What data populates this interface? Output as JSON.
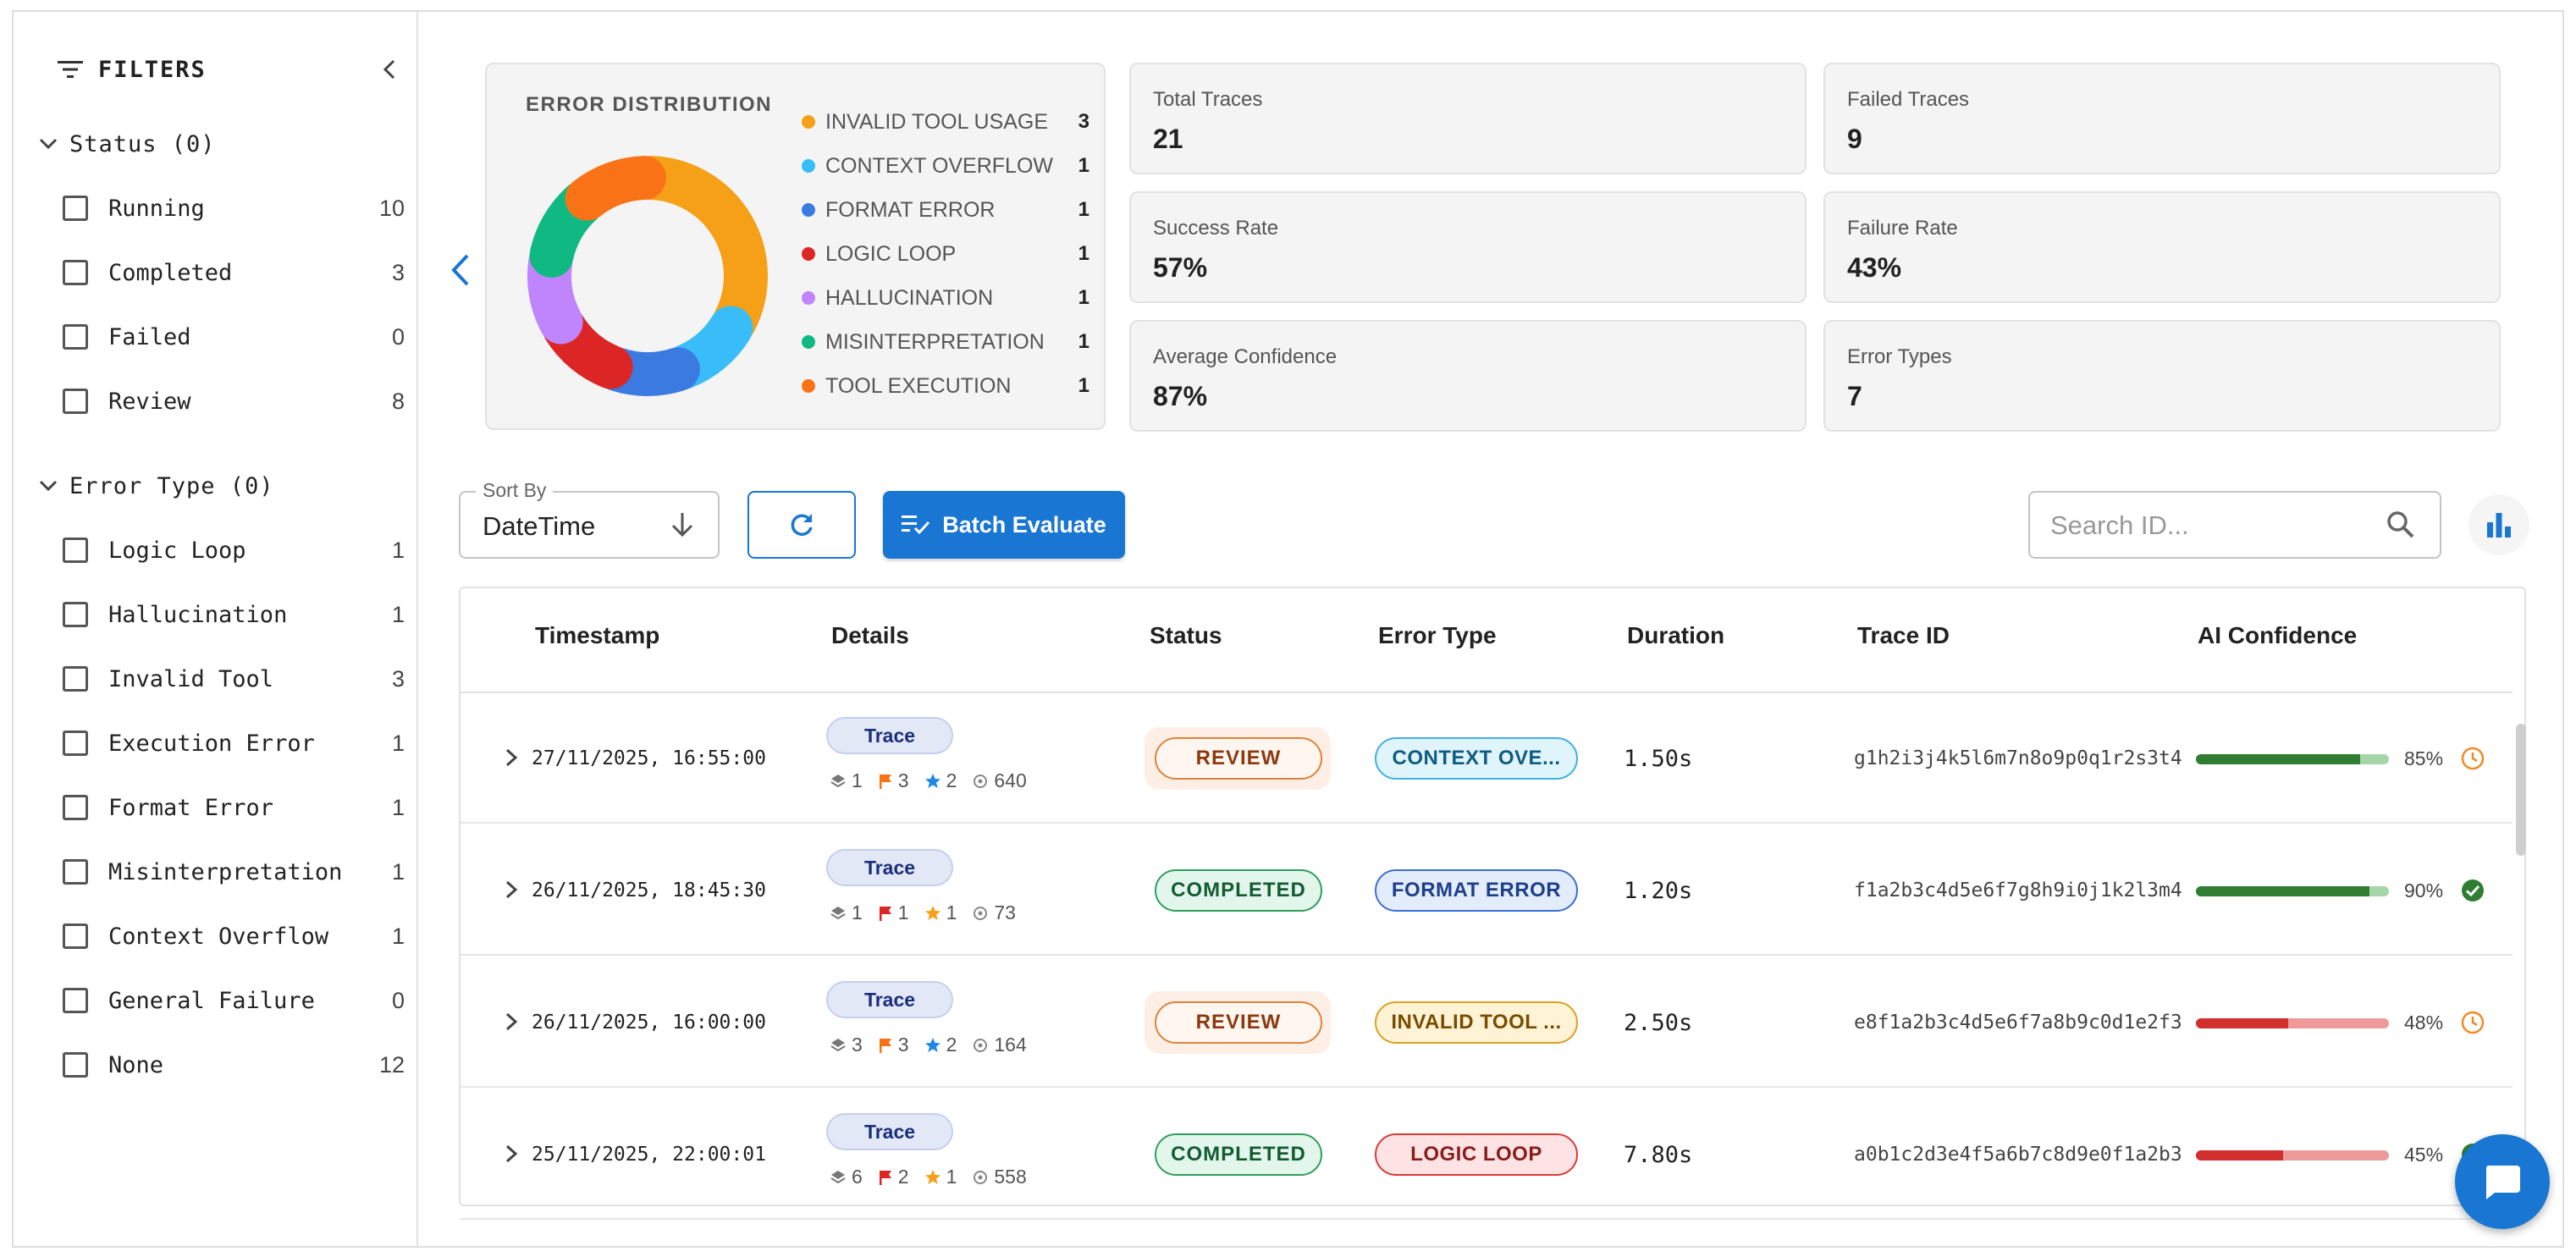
{
  "sidebar": {
    "title": "FILTERS",
    "status_section": {
      "label": "Status (0)",
      "items": [
        {
          "label": "Running",
          "count": "10"
        },
        {
          "label": "Completed",
          "count": "3"
        },
        {
          "label": "Failed",
          "count": "0"
        },
        {
          "label": "Review",
          "count": "8"
        }
      ]
    },
    "error_section": {
      "label": "Error Type (0)",
      "items": [
        {
          "label": "Logic Loop",
          "count": "1"
        },
        {
          "label": "Hallucination",
          "count": "1"
        },
        {
          "label": "Invalid Tool",
          "count": "3"
        },
        {
          "label": "Execution Error",
          "count": "1"
        },
        {
          "label": "Format Error",
          "count": "1"
        },
        {
          "label": "Misinterpretation",
          "count": "1"
        },
        {
          "label": "Context Overflow",
          "count": "1"
        },
        {
          "label": "General Failure",
          "count": "0"
        },
        {
          "label": "None",
          "count": "12"
        }
      ]
    }
  },
  "distribution": {
    "title": "ERROR DISTRIBUTION",
    "legend": [
      {
        "label": "INVALID TOOL USAGE",
        "count": "3",
        "color": "#f5a016"
      },
      {
        "label": "CONTEXT OVERFLOW",
        "count": "1",
        "color": "#38bdf8"
      },
      {
        "label": "FORMAT ERROR",
        "count": "1",
        "color": "#3b7ae0"
      },
      {
        "label": "LOGIC LOOP",
        "count": "1",
        "color": "#dc2626"
      },
      {
        "label": "HALLUCINATION",
        "count": "1",
        "color": "#c084fc"
      },
      {
        "label": "MISINTERPRETATION",
        "count": "1",
        "color": "#10b981"
      },
      {
        "label": "TOOL EXECUTION",
        "count": "1",
        "color": "#f97316"
      }
    ]
  },
  "stats": {
    "total_traces": {
      "label": "Total Traces",
      "value": "21"
    },
    "failed_traces": {
      "label": "Failed Traces",
      "value": "9"
    },
    "success_rate": {
      "label": "Success Rate",
      "value": "57%"
    },
    "failure_rate": {
      "label": "Failure Rate",
      "value": "43%"
    },
    "avg_confidence": {
      "label": "Average Confidence",
      "value": "87%"
    },
    "error_types": {
      "label": "Error Types",
      "value": "7"
    }
  },
  "toolbar": {
    "sort_label": "Sort By",
    "sort_value": "DateTime",
    "batch_label": "Batch Evaluate",
    "search_placeholder": "Search ID..."
  },
  "table": {
    "headers": {
      "timestamp": "Timestamp",
      "details": "Details",
      "status": "Status",
      "error_type": "Error Type",
      "duration": "Duration",
      "trace_id": "Trace ID",
      "confidence": "AI Confidence"
    },
    "rows": [
      {
        "timestamp": "27/11/2025, 16:55:00",
        "chip": "Trace",
        "layers": "1",
        "flags": "3",
        "flag_color": "#f97316",
        "stars": "2",
        "star_color": "#1e88e5",
        "tokens": "640",
        "status": "REVIEW",
        "status_kind": "review",
        "error": "CONTEXT OVE...",
        "error_kind": "context",
        "duration": "1.50s",
        "trace_id": "g1h2i3j4k5l6m7n8o9p0q1r2s3t4",
        "confidence": 85,
        "confidence_label": "85%",
        "confidence_icon": "clock-icon"
      },
      {
        "timestamp": "26/11/2025, 18:45:30",
        "chip": "Trace",
        "layers": "1",
        "flags": "1",
        "flag_color": "#dc2626",
        "stars": "1",
        "star_color": "#f5a016",
        "tokens": "73",
        "status": "COMPLETED",
        "status_kind": "completed",
        "error": "FORMAT ERROR",
        "error_kind": "format",
        "duration": "1.20s",
        "trace_id": "f1a2b3c4d5e6f7g8h9i0j1k2l3m4",
        "confidence": 90,
        "confidence_label": "90%",
        "confidence_icon": "check-circle-icon"
      },
      {
        "timestamp": "26/11/2025, 16:00:00",
        "chip": "Trace",
        "layers": "3",
        "flags": "3",
        "flag_color": "#f97316",
        "stars": "2",
        "star_color": "#1e88e5",
        "tokens": "164",
        "status": "REVIEW",
        "status_kind": "review",
        "error": "INVALID TOOL ...",
        "error_kind": "invalid",
        "duration": "2.50s",
        "trace_id": "e8f1a2b3c4d5e6f7a8b9c0d1e2f3",
        "confidence": 48,
        "confidence_label": "48%",
        "confidence_icon": "clock-icon"
      },
      {
        "timestamp": "25/11/2025, 22:00:01",
        "chip": "Trace",
        "layers": "6",
        "flags": "2",
        "flag_color": "#dc2626",
        "stars": "1",
        "star_color": "#f5a016",
        "tokens": "558",
        "status": "COMPLETED",
        "status_kind": "completed",
        "error": "LOGIC LOOP",
        "error_kind": "logic",
        "duration": "7.80s",
        "trace_id": "a0b1c2d3e4f5a6b7c8d9e0f1a2b3",
        "confidence": 45,
        "confidence_label": "45%",
        "confidence_icon": "check-circle-icon"
      }
    ]
  }
}
